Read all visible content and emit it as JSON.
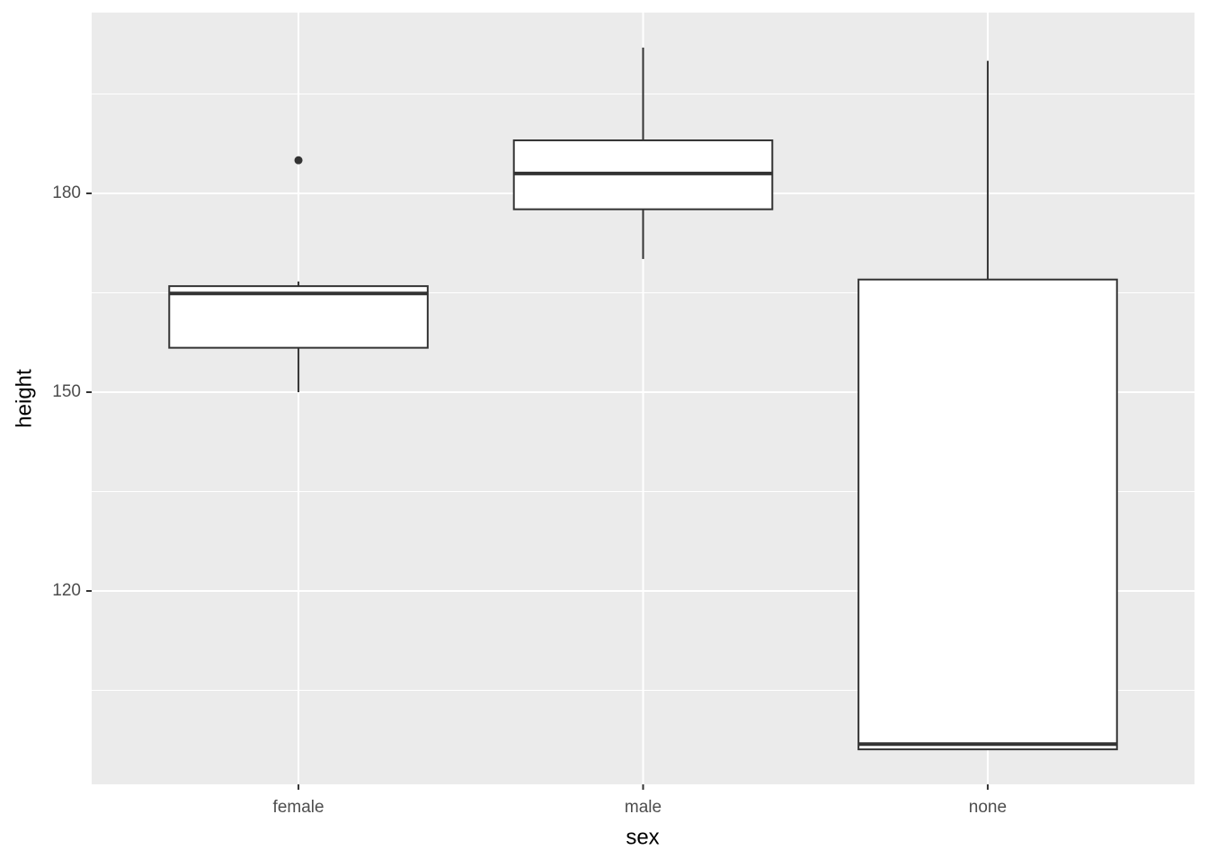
{
  "chart_data": {
    "type": "boxplot",
    "x_label": "sex",
    "y_label": "height",
    "categories": [
      "female",
      "male",
      "none"
    ],
    "whisker_low": [
      150,
      170.1,
      96.1
    ],
    "q1": [
      156.7,
      177.6,
      96.1
    ],
    "median": [
      164.9,
      183.0,
      96.9
    ],
    "q3": [
      166.0,
      188.0,
      167.0
    ],
    "whisker_high": [
      166.7,
      202.0,
      200.0
    ],
    "outliers": [
      [
        185
      ],
      [],
      []
    ],
    "ylim": [
      90.82,
      207.28
    ],
    "yticks": [
      120,
      150,
      180
    ],
    "minor_yticks": [
      105,
      135,
      165,
      195
    ],
    "grid": true,
    "panel_color": "#ebebeb",
    "box_fill": "#ffffff",
    "box_stroke": "#333333"
  }
}
